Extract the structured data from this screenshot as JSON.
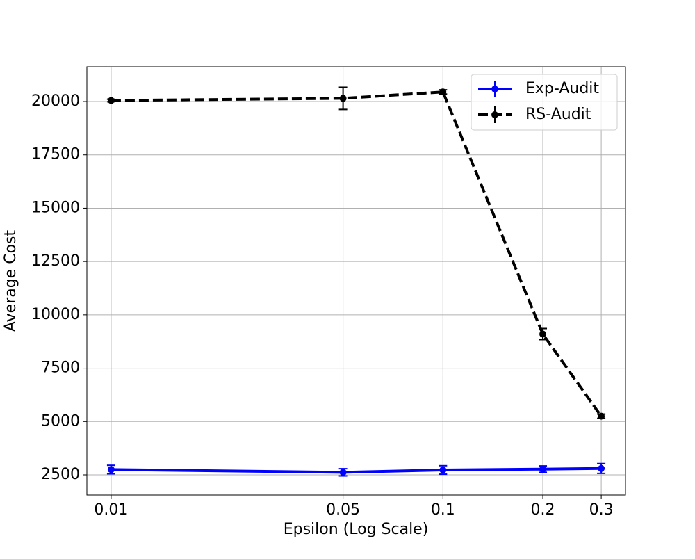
{
  "chart_data": {
    "type": "errorbar-line",
    "x_label": "Epsilon (Log Scale)",
    "y_label": "Average Cost",
    "x": [
      0.01,
      0.05,
      0.1,
      0.2,
      0.3
    ],
    "xscale": "log",
    "xlim": [
      0.00845,
      0.355
    ],
    "xticks": [
      0.01,
      0.05,
      0.1,
      0.2,
      0.3
    ],
    "ylim": [
      1555,
      21630
    ],
    "yticks": [
      2500,
      5000,
      7500,
      10000,
      12500,
      15000,
      17500,
      20000
    ],
    "grid": true,
    "legend": "upper right",
    "series": [
      {
        "name": "Exp-Audit",
        "color": "#0000ff",
        "linestyle": "solid",
        "values": [
          2750,
          2620,
          2730,
          2770,
          2800
        ],
        "errors": [
          200,
          170,
          200,
          150,
          230
        ]
      },
      {
        "name": "RS-Audit",
        "color": "#000000",
        "linestyle": "dashed",
        "values": [
          20050,
          20150,
          20450,
          9100,
          5250
        ],
        "errors": [
          60,
          520,
          100,
          260,
          100
        ]
      }
    ]
  }
}
